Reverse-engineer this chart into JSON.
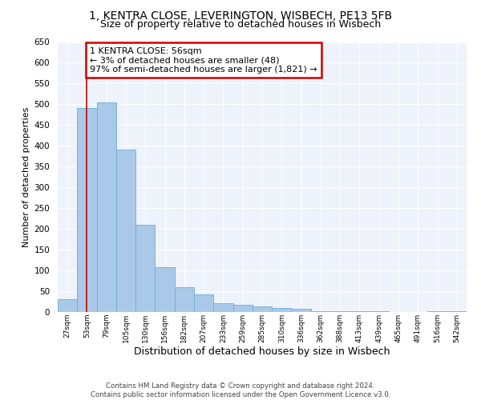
{
  "title1": "1, KENTRA CLOSE, LEVERINGTON, WISBECH, PE13 5FB",
  "title2": "Size of property relative to detached houses in Wisbech",
  "xlabel": "Distribution of detached houses by size in Wisbech",
  "ylabel": "Number of detached properties",
  "footer1": "Contains HM Land Registry data © Crown copyright and database right 2024.",
  "footer2": "Contains public sector information licensed under the Open Government Licence v3.0.",
  "annotation_title": "1 KENTRA CLOSE: 56sqm",
  "annotation_line2": "← 3% of detached houses are smaller (48)",
  "annotation_line3": "97% of semi-detached houses are larger (1,821) →",
  "bar_labels": [
    "27sqm",
    "53sqm",
    "79sqm",
    "105sqm",
    "130sqm",
    "156sqm",
    "182sqm",
    "207sqm",
    "233sqm",
    "259sqm",
    "285sqm",
    "310sqm",
    "336sqm",
    "362sqm",
    "388sqm",
    "413sqm",
    "439sqm",
    "465sqm",
    "491sqm",
    "516sqm",
    "542sqm"
  ],
  "bar_values": [
    30,
    492,
    505,
    390,
    210,
    107,
    60,
    42,
    22,
    18,
    13,
    10,
    8,
    1,
    1,
    1,
    1,
    0,
    0,
    1,
    1
  ],
  "bar_color": "#aac8e8",
  "bar_edge_color": "#6aafd6",
  "highlight_line_color": "#cc0000",
  "annotation_box_edge_color": "#cc0000",
  "ylim": [
    0,
    650
  ],
  "bg_color": "#eef2fa",
  "grid_color": "#ffffff",
  "title_fontsize": 10,
  "subtitle_fontsize": 9,
  "bar_index_highlight": 1
}
